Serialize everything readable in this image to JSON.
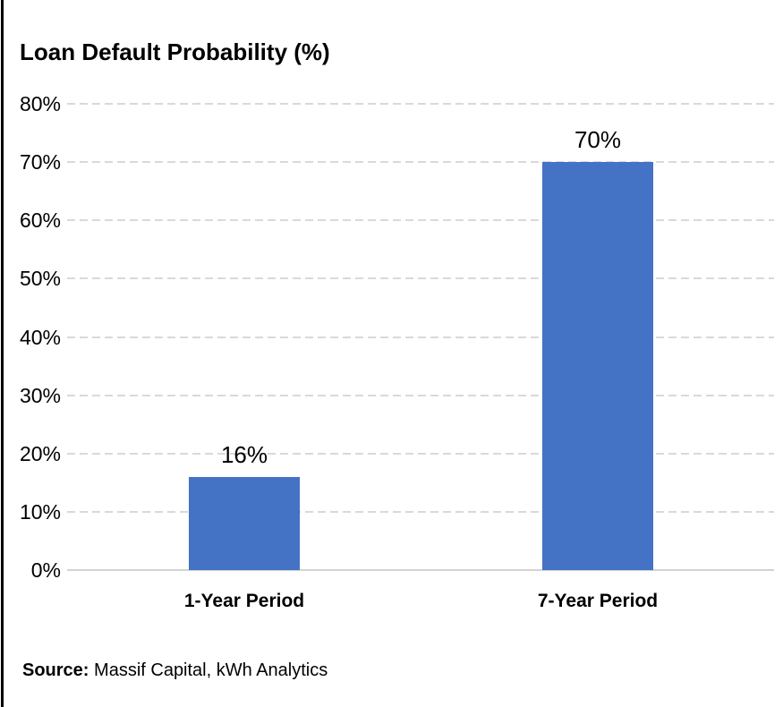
{
  "page": {
    "title": "Loan Default Probability (%)"
  },
  "source": {
    "label": "Source:",
    "text": "Massif Capital, kWh Analytics"
  },
  "colors": {
    "bar_fill": "#4472C4",
    "gridline": "#D9D9D9",
    "axis_line": "#D3D3D3",
    "text": "#000000",
    "left_border": "#000000",
    "background": "#FFFFFF"
  },
  "chart_data": {
    "type": "bar",
    "title": "Loan Default Probability (%)",
    "categories": [
      "1-Year Period",
      "7-Year Period"
    ],
    "values": [
      16,
      70
    ],
    "data_labels": [
      "16%",
      "70%"
    ],
    "xlabel": "",
    "ylabel": "",
    "ylim": [
      0,
      80
    ],
    "ytick_step": 10,
    "ytick_labels": [
      "0%",
      "10%",
      "20%",
      "30%",
      "40%",
      "50%",
      "60%",
      "70%",
      "80%"
    ],
    "grid": "horizontal-dashed",
    "legend": "none",
    "annotations": [
      "Source: Massif Capital, kWh Analytics"
    ]
  }
}
